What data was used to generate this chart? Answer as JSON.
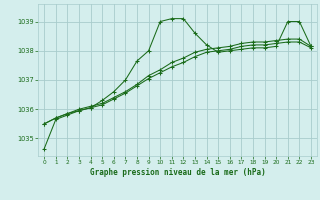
{
  "bg_color": "#d4eeed",
  "grid_color": "#a8cccc",
  "line_color": "#1a6b1a",
  "title": "Graphe pression niveau de la mer (hPa)",
  "xlim": [
    -0.5,
    23.5
  ],
  "ylim": [
    1034.4,
    1039.6
  ],
  "yticks": [
    1035,
    1036,
    1037,
    1038,
    1039
  ],
  "xticks": [
    0,
    1,
    2,
    3,
    4,
    5,
    6,
    7,
    8,
    9,
    10,
    11,
    12,
    13,
    14,
    15,
    16,
    17,
    18,
    19,
    20,
    21,
    22,
    23
  ],
  "series1": [
    1034.65,
    1035.65,
    1035.8,
    1035.95,
    1036.05,
    1036.3,
    1036.6,
    1037.0,
    1037.65,
    1038.0,
    1039.0,
    1039.1,
    1039.1,
    1038.6,
    1038.2,
    1037.95,
    1038.0,
    1038.05,
    1038.1,
    1038.1,
    1038.15,
    1039.0,
    1039.0,
    1038.15
  ],
  "series2": [
    1035.5,
    1035.7,
    1035.85,
    1036.0,
    1036.1,
    1036.2,
    1036.4,
    1036.6,
    1036.85,
    1037.15,
    1037.35,
    1037.6,
    1037.75,
    1037.95,
    1038.05,
    1038.1,
    1038.15,
    1038.25,
    1038.3,
    1038.3,
    1038.35,
    1038.4,
    1038.4,
    1038.15
  ],
  "series3": [
    1035.5,
    1035.7,
    1035.85,
    1035.95,
    1036.05,
    1036.15,
    1036.35,
    1036.55,
    1036.8,
    1037.05,
    1037.25,
    1037.45,
    1037.6,
    1037.8,
    1037.95,
    1038.0,
    1038.05,
    1038.15,
    1038.2,
    1038.2,
    1038.25,
    1038.3,
    1038.3,
    1038.1
  ]
}
